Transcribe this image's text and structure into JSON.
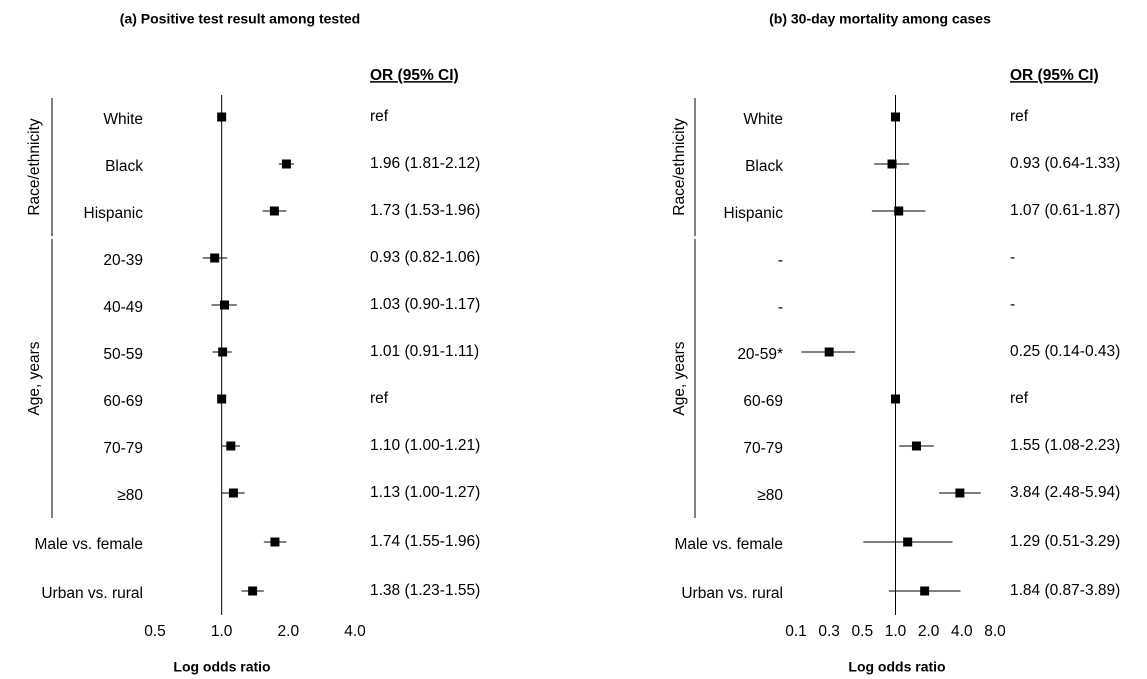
{
  "chart_data": [
    {
      "type": "forest",
      "title": "(a) Positive test result among tested",
      "x_label": "Log odds ratio",
      "column_header": "OR (95% CI)",
      "log_scale": true,
      "xlim": [
        0.5,
        4
      ],
      "xticks": [
        0.5,
        {
          "value": 1,
          "label": "1.0"
        },
        {
          "value": 2,
          "label": "2.0"
        },
        {
          "value": 4,
          "label": "4.0"
        }
      ],
      "color": "#000000",
      "groups": [
        {
          "name": "Race/ethnicity",
          "start": 0,
          "end": 2
        },
        {
          "name": "Age, years",
          "start": 3,
          "end": 8
        }
      ],
      "categories": [
        "White",
        "Black",
        "Hispanic",
        "20-39",
        "40-49",
        "50-59",
        "60-69",
        "70-79",
        "≥80",
        "Male vs. female",
        "Urban vs. rural"
      ],
      "values": [
        1,
        1.96,
        1.73,
        0.93,
        1.03,
        1.01,
        1,
        1.1,
        1.13,
        1.74,
        1.38
      ],
      "lower": [
        null,
        1.81,
        1.53,
        0.82,
        0.9,
        0.91,
        null,
        1.0,
        1.0,
        1.55,
        1.23
      ],
      "upper": [
        null,
        2.12,
        1.96,
        1.06,
        1.17,
        1.11,
        null,
        1.21,
        1.27,
        1.96,
        1.55
      ],
      "value_labels": [
        "ref",
        "1.96 (1.81-2.12)",
        "1.73 (1.53-1.96)",
        "0.93 (0.82-1.06)",
        "1.03 (0.90-1.17)",
        "1.01 (0.91-1.11)",
        "ref",
        "1.10 (1.00-1.21)",
        "1.13 (1.00-1.27)",
        "1.74 (1.55-1.96)",
        "1.38 (1.23-1.55)"
      ]
    },
    {
      "type": "forest",
      "title": "(b) 30-day mortality among cases",
      "x_label": "Log odds ratio",
      "column_header": "OR (95% CI)",
      "log_scale": true,
      "xlim": [
        0.125,
        8
      ],
      "xticks": [
        {
          "value": 0.125,
          "label": "0.1"
        },
        {
          "value": 0.25,
          "label": "0.3"
        },
        0.5,
        {
          "value": 1,
          "label": "1.0"
        },
        {
          "value": 2,
          "label": "2.0"
        },
        {
          "value": 4,
          "label": "4.0"
        },
        {
          "value": 8,
          "label": "8.0"
        }
      ],
      "color": "#000000",
      "groups": [
        {
          "name": "Race/ethnicity",
          "start": 0,
          "end": 2
        },
        {
          "name": "Age, years",
          "start": 3,
          "end": 8
        }
      ],
      "categories": [
        "White",
        "Black",
        "Hispanic",
        "-",
        "-",
        "20-59*",
        "60-69",
        "70-79",
        "≥80",
        "Male vs. female",
        "Urban vs. rural"
      ],
      "values": [
        1,
        0.93,
        1.07,
        null,
        null,
        0.25,
        1,
        1.55,
        3.84,
        1.29,
        1.84
      ],
      "lower": [
        null,
        0.64,
        0.61,
        null,
        null,
        0.14,
        null,
        1.08,
        2.48,
        0.51,
        0.87
      ],
      "upper": [
        null,
        1.33,
        1.87,
        null,
        null,
        0.43,
        null,
        2.23,
        5.94,
        3.29,
        3.89
      ],
      "value_labels": [
        "ref",
        "0.93 (0.64-1.33)",
        "1.07 (0.61-1.87)",
        "-",
        "-",
        "0.25 (0.14-0.43)",
        "ref",
        "1.55 (1.08-2.23)",
        "3.84 (2.48-5.94)",
        "1.29 (0.51-3.29)",
        "1.84 (0.87-3.89)"
      ]
    }
  ]
}
